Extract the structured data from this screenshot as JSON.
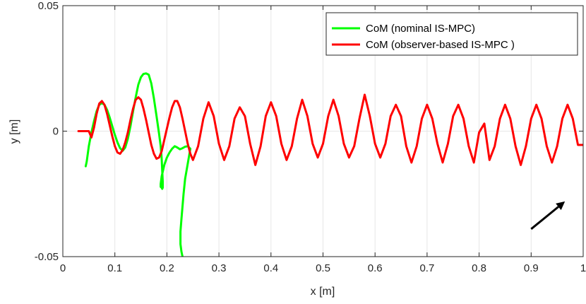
{
  "chart_data": {
    "type": "line",
    "title": "",
    "xlabel": "x [m]",
    "ylabel": "y [m]",
    "xlim": [
      0,
      1
    ],
    "ylim": [
      -0.05,
      0.05
    ],
    "grid": true,
    "legend_position": "top-right",
    "xticks": [
      0,
      0.1,
      0.2,
      0.3,
      0.4,
      0.5,
      0.6,
      0.7,
      0.8,
      0.9,
      1
    ],
    "xtick_labels": [
      "0",
      "0.1",
      "0.2",
      "0.3",
      "0.4",
      "0.5",
      "0.6",
      "0.7",
      "0.8",
      "0.9",
      "1"
    ],
    "yticks": [
      -0.05,
      0,
      0.05
    ],
    "ytick_labels": [
      "-0.05",
      "0",
      "0.05"
    ],
    "series": [
      {
        "name": "CoM (nominal IS-MPC)",
        "color": "#00ff00",
        "x": [
          0.044,
          0.046,
          0.05,
          0.055,
          0.06,
          0.065,
          0.07,
          0.075,
          0.08,
          0.085,
          0.09,
          0.095,
          0.1,
          0.105,
          0.11,
          0.115,
          0.12,
          0.125,
          0.13,
          0.135,
          0.14,
          0.145,
          0.15,
          0.155,
          0.16,
          0.165,
          0.17,
          0.175,
          0.18,
          0.185,
          0.188,
          0.19,
          0.191,
          0.192,
          0.192,
          0.191,
          0.19,
          0.188,
          0.188,
          0.19,
          0.195,
          0.2,
          0.205,
          0.21,
          0.215,
          0.22,
          0.225,
          0.23,
          0.235,
          0.24,
          0.245,
          0.24,
          0.235,
          0.232,
          0.23,
          0.228,
          0.226,
          0.226,
          0.228,
          0.23,
          0.232
        ],
        "y": [
          -0.014,
          -0.012,
          -0.006,
          -0.0005,
          0.004,
          0.008,
          0.0105,
          0.0112,
          0.0105,
          0.0085,
          0.0055,
          0.002,
          -0.0015,
          -0.0045,
          -0.0068,
          -0.0078,
          -0.0065,
          -0.003,
          0.002,
          0.008,
          0.0135,
          0.0185,
          0.0215,
          0.0228,
          0.023,
          0.0225,
          0.019,
          0.013,
          0.006,
          -0.001,
          -0.006,
          -0.011,
          -0.016,
          -0.02,
          -0.0225,
          -0.023,
          -0.0225,
          -0.0222,
          -0.021,
          -0.018,
          -0.0135,
          -0.0105,
          -0.0085,
          -0.007,
          -0.006,
          -0.0065,
          -0.0072,
          -0.0068,
          -0.0062,
          -0.006,
          -0.007,
          -0.013,
          -0.019,
          -0.025,
          -0.03,
          -0.035,
          -0.04,
          -0.045,
          -0.048,
          -0.05,
          -0.051
        ]
      },
      {
        "name": "CoM (observer-based IS-MPC )",
        "color": "#ff0000",
        "x": [
          0.03,
          0.035,
          0.04,
          0.045,
          0.05,
          0.055,
          0.06,
          0.065,
          0.07,
          0.075,
          0.08,
          0.085,
          0.09,
          0.095,
          0.1,
          0.105,
          0.11,
          0.115,
          0.12,
          0.125,
          0.13,
          0.135,
          0.14,
          0.145,
          0.15,
          0.155,
          0.16,
          0.165,
          0.17,
          0.175,
          0.18,
          0.185,
          0.19,
          0.195,
          0.2,
          0.205,
          0.21,
          0.215,
          0.22,
          0.225,
          0.23,
          0.235,
          0.24,
          0.245,
          0.25,
          0.26,
          0.27,
          0.28,
          0.29,
          0.3,
          0.31,
          0.32,
          0.33,
          0.34,
          0.35,
          0.36,
          0.37,
          0.38,
          0.39,
          0.4,
          0.41,
          0.42,
          0.43,
          0.44,
          0.45,
          0.46,
          0.47,
          0.48,
          0.49,
          0.5,
          0.51,
          0.52,
          0.53,
          0.54,
          0.55,
          0.56,
          0.57,
          0.58,
          0.59,
          0.6,
          0.61,
          0.62,
          0.63,
          0.64,
          0.65,
          0.66,
          0.67,
          0.68,
          0.69,
          0.7,
          0.71,
          0.72,
          0.73,
          0.74,
          0.75,
          0.76,
          0.77,
          0.78,
          0.79,
          0.8,
          0.81,
          0.82,
          0.83,
          0.84,
          0.85,
          0.86,
          0.87,
          0.88,
          0.89,
          0.9,
          0.91,
          0.92,
          0.93,
          0.94,
          0.95,
          0.96,
          0.97,
          0.98,
          0.99,
          1.0
        ],
        "y": [
          0,
          0,
          0,
          0,
          0,
          -0.0025,
          0.0015,
          0.007,
          0.011,
          0.012,
          0.0105,
          0.007,
          0.0025,
          -0.002,
          -0.006,
          -0.0085,
          -0.009,
          -0.0075,
          -0.0045,
          -0.0005,
          0.0045,
          0.009,
          0.0125,
          0.0135,
          0.0125,
          0.009,
          0.0045,
          -0.0005,
          -0.0055,
          -0.009,
          -0.011,
          -0.0105,
          -0.008,
          -0.0035,
          0.001,
          0.0055,
          0.0095,
          0.012,
          0.012,
          0.0095,
          0.005,
          0.0,
          -0.005,
          -0.009,
          -0.0115,
          -0.006,
          0.005,
          0.0115,
          0.006,
          -0.005,
          -0.0115,
          -0.006,
          0.005,
          0.0095,
          0.006,
          -0.005,
          -0.0135,
          -0.006,
          0.006,
          0.0115,
          0.006,
          -0.005,
          -0.0115,
          -0.006,
          0.005,
          0.0125,
          0.006,
          -0.005,
          -0.0105,
          -0.005,
          0.006,
          0.0125,
          0.006,
          -0.005,
          -0.0105,
          -0.006,
          0.005,
          0.0145,
          0.006,
          -0.005,
          -0.0105,
          -0.005,
          0.006,
          0.0105,
          0.006,
          -0.006,
          -0.0125,
          -0.006,
          0.005,
          0.0105,
          0.005,
          -0.005,
          -0.0125,
          -0.005,
          0.006,
          0.0105,
          0.005,
          -0.006,
          -0.0125,
          -0.0005,
          0.003,
          -0.0115,
          -0.006,
          0.005,
          0.0105,
          0.005,
          -0.006,
          -0.0135,
          -0.006,
          0.005,
          0.0105,
          0.005,
          -0.006,
          -0.0125,
          -0.006,
          0.005,
          0.0105,
          0.005,
          -0.0055,
          -0.0055
        ]
      }
    ],
    "annotation": {
      "type": "arrow",
      "from": [
        0.9,
        -0.039
      ],
      "to": [
        0.965,
        -0.028
      ],
      "color": "#000000"
    }
  }
}
